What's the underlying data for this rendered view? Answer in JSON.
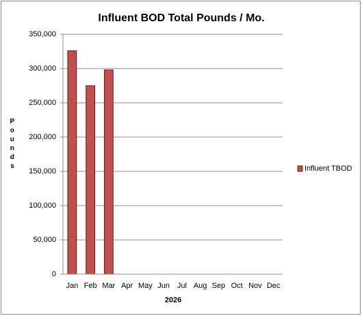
{
  "chart_data": {
    "type": "bar",
    "title": "Influent BOD Total Pounds / Mo.",
    "categories": [
      "Jan",
      "Feb",
      "Mar",
      "Apr",
      "May",
      "Jun",
      "Jul",
      "Aug",
      "Sep",
      "Oct",
      "Nov",
      "Dec"
    ],
    "x_label": "2026",
    "y_label": "Pounds",
    "series": [
      {
        "name": "Influent TBOD",
        "color": "#c0504d",
        "values": [
          326000,
          275000,
          298000,
          null,
          null,
          null,
          null,
          null,
          null,
          null,
          null,
          null
        ]
      }
    ],
    "ylim": [
      0,
      350000
    ],
    "yticks": [
      0,
      {
        "value": 50000,
        "label": "50,000"
      },
      {
        "value": 100000,
        "label": "100,000"
      },
      {
        "value": 150000,
        "label": "150,000"
      },
      {
        "value": 200000,
        "label": "200,000"
      },
      {
        "value": 250000,
        "label": "250,000"
      },
      {
        "value": 300000,
        "label": "300,000"
      },
      {
        "value": 350000,
        "label": "350,000"
      }
    ],
    "grid": true,
    "legend": "right"
  }
}
